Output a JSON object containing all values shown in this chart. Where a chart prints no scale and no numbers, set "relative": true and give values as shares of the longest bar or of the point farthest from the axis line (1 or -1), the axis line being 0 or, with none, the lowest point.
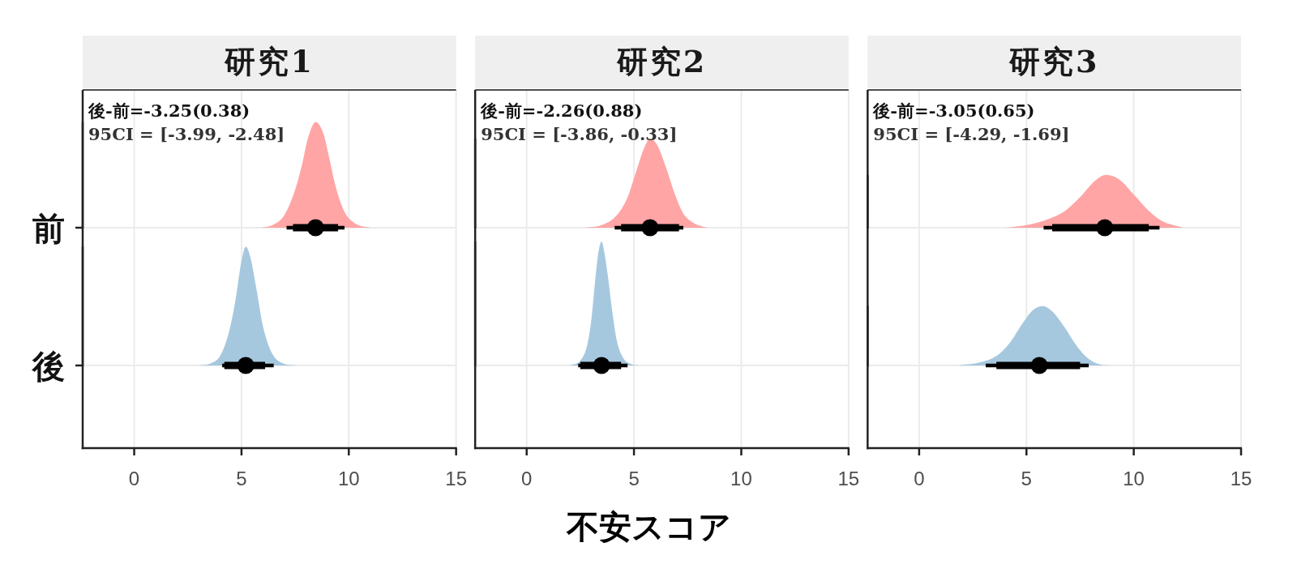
{
  "chart_data": [
    {
      "type": "box",
      "orientation": "horizontal",
      "title": "研究1",
      "categories": [
        "前",
        "後"
      ],
      "xlim": [
        -2.4,
        15
      ],
      "xticks": [
        0,
        5,
        10,
        15
      ],
      "grid": true,
      "color": "#000000",
      "boxes": [
        {
          "low": 7.1,
          "q1": 7.4,
          "median": 8.45,
          "q3": 9.5,
          "high": 9.8
        },
        {
          "low": 4.1,
          "q1": 4.2,
          "median": 5.2,
          "q3": 6.1,
          "high": 6.5
        }
      ],
      "annotations": [
        "後-前=-3.25(0.38)",
        "95CI = [-3.99, -2.48]"
      ]
    },
    {
      "type": "box",
      "orientation": "horizontal",
      "title": "研究2",
      "categories": [
        null,
        null
      ],
      "xlim": [
        -2.4,
        15
      ],
      "xticks": [
        0,
        5,
        10,
        15
      ],
      "grid": true,
      "color": "#000000",
      "xlabel": "不安スコア",
      "boxes": [
        {
          "low": 4.1,
          "q1": 4.4,
          "median": 5.75,
          "q3": 7.1,
          "high": 7.3
        },
        {
          "low": 2.4,
          "q1": 2.5,
          "median": 3.49,
          "q3": 4.4,
          "high": 4.7
        }
      ],
      "annotations": [
        "後-前=-2.26(0.88)",
        "95CI = [-3.86, -0.33]"
      ]
    },
    {
      "type": "box",
      "orientation": "horizontal",
      "title": "研究3",
      "categories": [
        null,
        null
      ],
      "xlim": [
        -2.4,
        15
      ],
      "xticks": [
        0,
        5,
        10,
        15
      ],
      "grid": true,
      "color": "#000000",
      "boxes": [
        {
          "low": 5.8,
          "q1": 6.2,
          "median": 8.65,
          "q3": 10.7,
          "high": 11.2
        },
        {
          "low": 3.1,
          "q1": 3.6,
          "median": 5.6,
          "q3": 7.5,
          "high": 7.9
        }
      ],
      "annotations": [
        "後-前=-3.05(0.65)",
        "95CI = [-4.29, -1.69]"
      ]
    },
    {
      "type": "area",
      "relative": true,
      "xlim": [
        -2.4,
        15
      ],
      "color": "#ffa5a5",
      "x": [
        5.9,
        6.5,
        7.0,
        7.5,
        7.8,
        8.1,
        8.45,
        8.8,
        9.1,
        9.4,
        9.8,
        10.3,
        11.0
      ],
      "values": [
        0,
        0.03,
        0.12,
        0.36,
        0.58,
        0.85,
        1,
        0.9,
        0.65,
        0.38,
        0.15,
        0.04,
        0
      ]
    },
    {
      "type": "area",
      "relative": true,
      "xlim": [
        -2.4,
        15
      ],
      "color": "#a6c8df",
      "x": [
        3.0,
        3.6,
        4.0,
        4.4,
        4.7,
        5.0,
        5.2,
        5.4,
        5.7,
        6.0,
        6.4,
        6.9,
        7.6
      ],
      "values": [
        0,
        0.02,
        0.08,
        0.27,
        0.53,
        0.88,
        1,
        0.92,
        0.64,
        0.33,
        0.11,
        0.02,
        0
      ]
    },
    {
      "type": "area",
      "relative": true,
      "xlim": [
        -2.4,
        15
      ],
      "color": "#ffa5a5",
      "x": [
        2.7,
        3.5,
        4.2,
        4.7,
        5.1,
        5.5,
        5.75,
        6.1,
        6.5,
        6.9,
        7.3,
        7.8,
        8.4
      ],
      "values": [
        0,
        0.03,
        0.14,
        0.34,
        0.63,
        0.91,
        1,
        0.92,
        0.67,
        0.38,
        0.16,
        0.05,
        0
      ]
    },
    {
      "type": "area",
      "relative": true,
      "xlim": [
        -2.4,
        15
      ],
      "color": "#a6c8df",
      "x": [
        2.0,
        2.5,
        2.8,
        3.0,
        3.2,
        3.35,
        3.49,
        3.6,
        3.8,
        4.0,
        4.2,
        4.5,
        4.9,
        5.3
      ],
      "values": [
        0,
        0.04,
        0.15,
        0.35,
        0.7,
        0.92,
        1,
        0.93,
        0.7,
        0.42,
        0.2,
        0.06,
        0.01,
        0
      ]
    },
    {
      "type": "area",
      "relative": true,
      "xlim": [
        -2.4,
        15
      ],
      "color": "#ffa5a5",
      "x": [
        4.0,
        5.0,
        6.0,
        6.8,
        7.5,
        8.2,
        8.7,
        9.3,
        10.0,
        10.7,
        11.3,
        12.3
      ],
      "values": [
        0,
        0.05,
        0.16,
        0.32,
        0.58,
        0.89,
        1,
        0.92,
        0.63,
        0.32,
        0.13,
        0
      ]
    },
    {
      "type": "area",
      "relative": true,
      "xlim": [
        -2.4,
        15
      ],
      "color": "#a6c8df",
      "x": [
        1.8,
        2.8,
        3.6,
        4.2,
        4.8,
        5.3,
        5.76,
        6.2,
        6.8,
        7.3,
        7.8,
        8.4,
        9.0
      ],
      "values": [
        0,
        0.05,
        0.16,
        0.37,
        0.7,
        0.93,
        1,
        0.91,
        0.63,
        0.35,
        0.14,
        0.02,
        0
      ]
    }
  ]
}
